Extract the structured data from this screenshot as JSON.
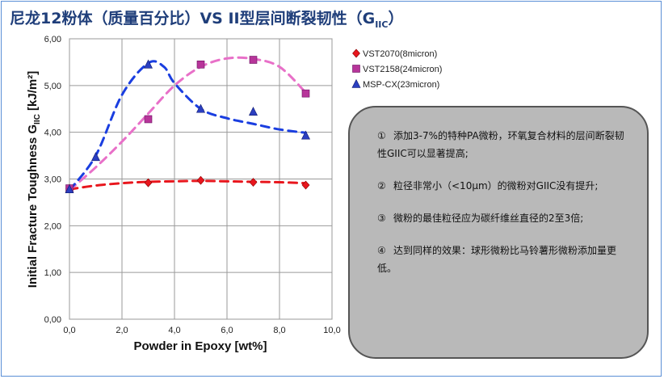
{
  "title": {
    "main": "尼龙12粉体（质量百分比）VS II型层间断裂韧性（G",
    "sub": "IIC",
    "close": "）"
  },
  "chart_data": {
    "type": "scatter",
    "xlabel": "Powder in Epoxy [wt%]",
    "ylabel_main": "Initial Fracture Toughness G",
    "ylabel_sub": "IIC",
    "ylabel_unit": " [kJ/m²]",
    "xlim": [
      0,
      10
    ],
    "ylim": [
      0,
      6
    ],
    "x_ticks": [
      "0,0",
      "2,0",
      "4,0",
      "6,0",
      "8,0",
      "10,0"
    ],
    "y_ticks": [
      "0,00",
      "1,00",
      "2,00",
      "3,00",
      "4,00",
      "5,00",
      "6,00"
    ],
    "grid": true,
    "legend_position": "right",
    "series": [
      {
        "name": "VST2070(8micron)",
        "color": "#e8161d",
        "marker": "diamond",
        "x": [
          0,
          3,
          5,
          7,
          9
        ],
        "y": [
          2.8,
          2.92,
          2.97,
          2.93,
          2.87
        ],
        "trend": [
          [
            0,
            2.78
          ],
          [
            1,
            2.86
          ],
          [
            2,
            2.91
          ],
          [
            3,
            2.94
          ],
          [
            4,
            2.95
          ],
          [
            5,
            2.96
          ],
          [
            6,
            2.95
          ],
          [
            7,
            2.94
          ],
          [
            8,
            2.93
          ],
          [
            9,
            2.91
          ]
        ]
      },
      {
        "name": "VST2158(24micron)",
        "color": "#b7359a",
        "trend_color": "#e870c8",
        "marker": "square",
        "x": [
          0,
          3,
          5,
          7,
          9
        ],
        "y": [
          2.8,
          4.28,
          5.45,
          5.55,
          4.83
        ],
        "trend": [
          [
            0,
            2.76
          ],
          [
            1,
            3.25
          ],
          [
            2,
            3.8
          ],
          [
            3,
            4.4
          ],
          [
            4,
            5.0
          ],
          [
            5,
            5.4
          ],
          [
            6,
            5.58
          ],
          [
            7,
            5.57
          ],
          [
            8,
            5.4
          ],
          [
            9,
            4.85
          ]
        ]
      },
      {
        "name": "MSP-CX(23micron)",
        "color": "#2b3fc0",
        "trend_color": "#1a3ee0",
        "marker": "triangle",
        "x": [
          0,
          1,
          3,
          5,
          7,
          9
        ],
        "y": [
          2.78,
          3.47,
          5.45,
          4.5,
          4.44,
          3.93
        ],
        "trend": [
          [
            0,
            2.76
          ],
          [
            1,
            3.5
          ],
          [
            2,
            4.8
          ],
          [
            3,
            5.48
          ],
          [
            3.6,
            5.4
          ],
          [
            4,
            5.05
          ],
          [
            5,
            4.5
          ],
          [
            6,
            4.3
          ],
          [
            7,
            4.18
          ],
          [
            8,
            4.06
          ],
          [
            9,
            3.99
          ]
        ]
      }
    ]
  },
  "notes": [
    {
      "num": "①",
      "text": "添加3-7%的特种PA微粉，环氧复合材料的层间断裂韧性GIIC可以显著提高;"
    },
    {
      "num": "②",
      "text": "粒径非常小（<10μm）的微粉对GIIC没有提升;"
    },
    {
      "num": "③",
      "text": "微粉的最佳粒径应为碳纤维丝直径的2至3倍;"
    },
    {
      "num": "④",
      "text": "达到同样的效果：球形微粉比马铃薯形微粉添加量更低。"
    }
  ]
}
